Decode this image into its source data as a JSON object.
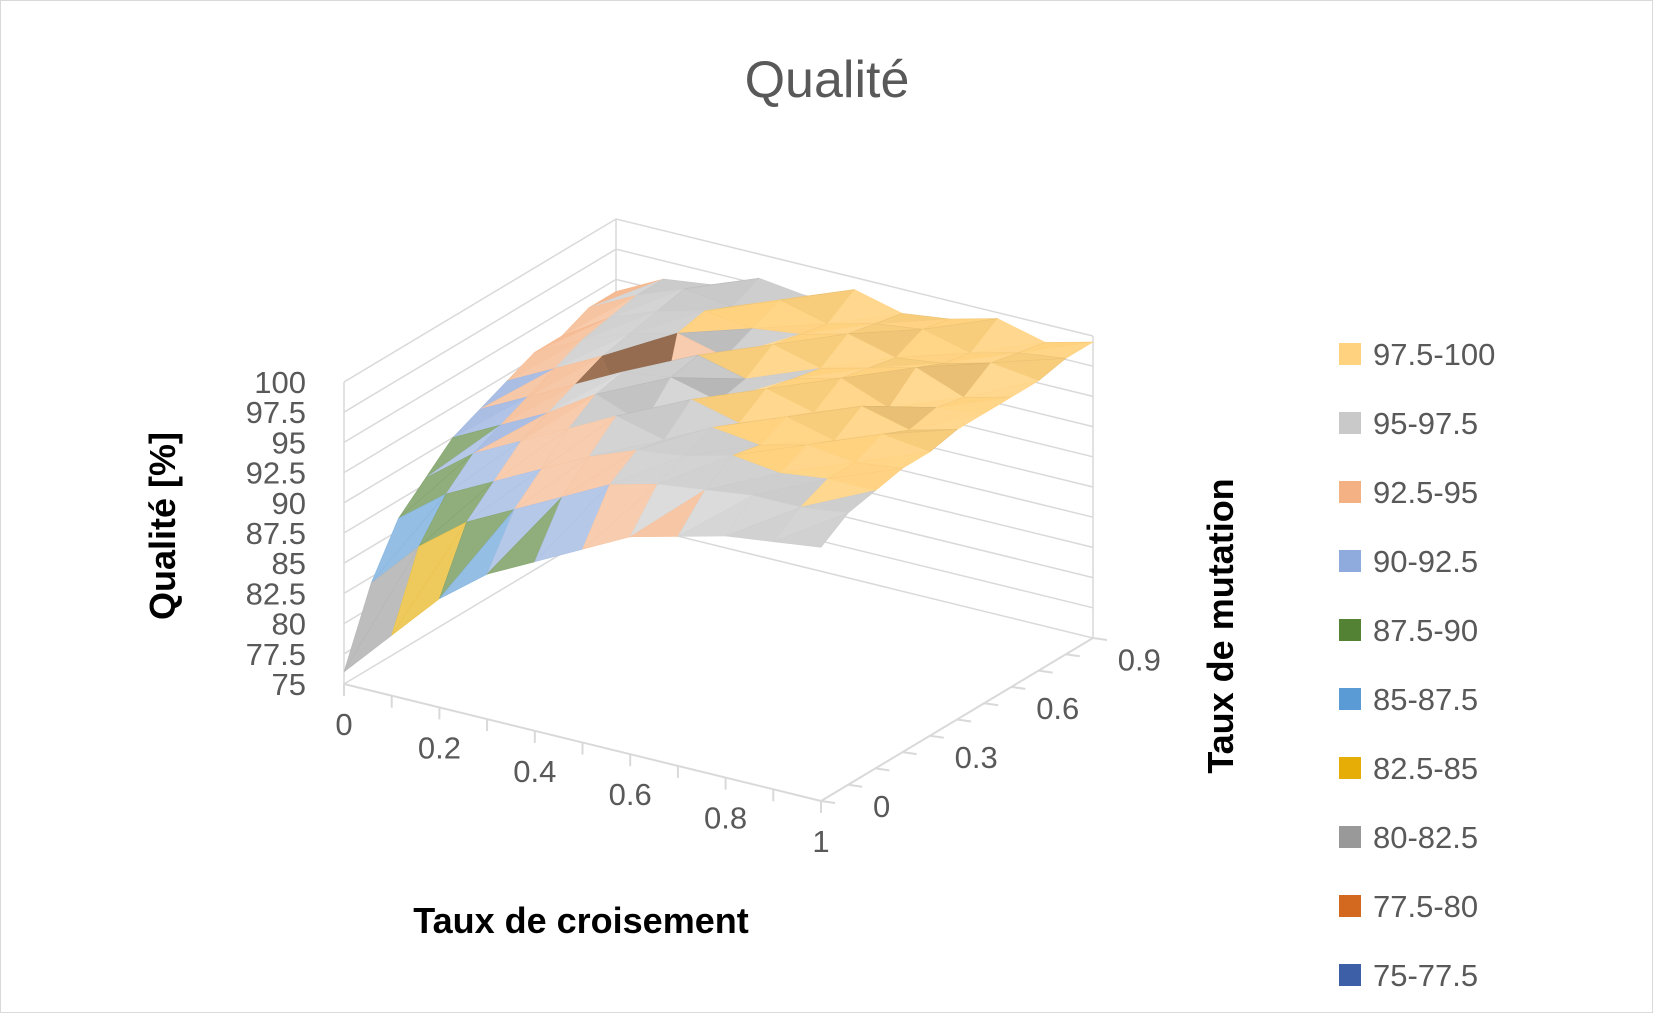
{
  "chart_data": {
    "type": "surface",
    "title": "Qualité",
    "zlabel": "Qualité [%]",
    "xlabel": "Taux de croisement",
    "ylabel": "Taux de mutation",
    "z_ticks": [
      "100",
      "97.5",
      "95",
      "92.5",
      "90",
      "87.5",
      "85",
      "82.5",
      "80",
      "77.5",
      "75"
    ],
    "zlim": [
      75,
      100
    ],
    "x_ticks": [
      "0",
      "0.2",
      "0.4",
      "0.6",
      "0.8",
      "1"
    ],
    "y_ticks": [
      "0",
      "0.3",
      "0.6",
      "0.9"
    ],
    "x": [
      0,
      0.1,
      0.2,
      0.3,
      0.4,
      0.5,
      0.6,
      0.7,
      0.8,
      0.9,
      1.0
    ],
    "y": [
      0,
      0.1,
      0.2,
      0.3,
      0.4,
      0.5,
      0.6,
      0.7,
      0.8,
      0.9,
      1.0
    ],
    "z": [
      [
        76,
        80,
        84,
        87,
        89,
        91,
        93,
        94,
        95,
        95.5,
        96
      ],
      [
        82,
        86,
        89,
        91,
        93,
        95,
        96,
        96.5,
        97,
        97,
        97.5
      ],
      [
        86,
        89,
        91,
        93,
        95,
        96.5,
        97,
        98,
        97.5,
        98,
        98
      ],
      [
        88,
        91,
        93,
        95,
        97,
        96,
        98,
        97.5,
        98.5,
        98,
        98.5
      ],
      [
        90,
        92,
        94,
        96.5,
        95,
        98,
        97,
        98.5,
        97.5,
        99,
        98.5
      ],
      [
        91,
        93,
        95,
        97,
        97.5,
        96.5,
        98.5,
        97.5,
        99,
        98,
        99
      ],
      [
        92,
        94,
        96,
        88,
        98,
        97,
        98,
        99,
        97.5,
        98.5,
        99
      ],
      [
        93,
        95,
        96.5,
        97.5,
        96.5,
        98.5,
        97.5,
        98.5,
        99.5,
        98,
        99
      ],
      [
        93,
        95.5,
        97,
        98,
        97.5,
        98,
        99,
        98,
        98.5,
        99.5,
        99
      ],
      [
        94,
        96,
        97.5,
        97,
        98.5,
        97.5,
        98.5,
        99,
        98,
        99,
        99.5
      ],
      [
        94,
        96,
        96.5,
        98,
        97.5,
        99,
        98,
        98.5,
        99.5,
        98.5,
        99.5
      ]
    ],
    "legend": {
      "position": "right",
      "entries": [
        {
          "label": "97.5-100",
          "color": "#FFD27F"
        },
        {
          "label": "95-97.5",
          "color": "#C9C9C9"
        },
        {
          "label": "92.5-95",
          "color": "#F4B183"
        },
        {
          "label": "90-92.5",
          "color": "#8FAADC"
        },
        {
          "label": "87.5-90",
          "color": "#548235"
        },
        {
          "label": "85-87.5",
          "color": "#5B9BD5"
        },
        {
          "label": "82.5-85",
          "color": "#E5AD06"
        },
        {
          "label": "80-82.5",
          "color": "#999999"
        },
        {
          "label": "77.5-80",
          "color": "#D2691E"
        },
        {
          "label": "75-77.5",
          "color": "#3C5FA8"
        }
      ]
    },
    "grid": true
  }
}
